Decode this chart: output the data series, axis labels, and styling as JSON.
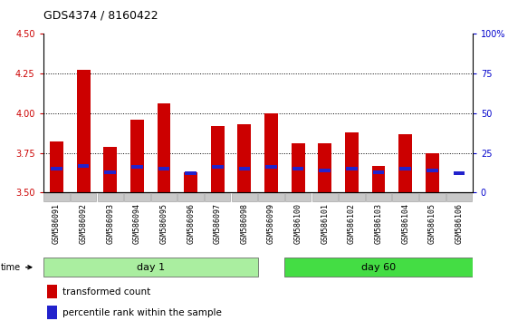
{
  "title": "GDS4374 / 8160422",
  "samples": [
    "GSM586091",
    "GSM586092",
    "GSM586093",
    "GSM586094",
    "GSM586095",
    "GSM586096",
    "GSM586097",
    "GSM586098",
    "GSM586099",
    "GSM586100",
    "GSM586101",
    "GSM586102",
    "GSM586103",
    "GSM586104",
    "GSM586105",
    "GSM586106"
  ],
  "red_values": [
    3.82,
    4.27,
    3.79,
    3.96,
    4.06,
    3.63,
    3.92,
    3.93,
    4.0,
    3.81,
    3.81,
    3.88,
    3.67,
    3.87,
    3.75,
    3.5
  ],
  "blue_values": [
    3.65,
    3.67,
    3.63,
    3.66,
    3.65,
    3.62,
    3.66,
    3.65,
    3.66,
    3.65,
    3.64,
    3.65,
    3.63,
    3.65,
    3.64,
    3.62
  ],
  "ylim": [
    3.5,
    4.5
  ],
  "yticks": [
    3.5,
    3.75,
    4.0,
    4.25,
    4.5
  ],
  "right_yticks": [
    0,
    25,
    50,
    75,
    100
  ],
  "right_ylim": [
    0,
    100
  ],
  "n_day1": 8,
  "n_day60": 8,
  "bar_width": 0.5,
  "red_color": "#cc0000",
  "blue_color": "#2222cc",
  "day1_color": "#aaeea0",
  "day60_color": "#44dd44",
  "grid_color": "#000000",
  "title_fontsize": 9,
  "axis_tick_fontsize": 7,
  "tick_color_left": "#cc0000",
  "tick_color_right": "#0000cc",
  "legend_fontsize": 7.5,
  "sample_label_fontsize": 6,
  "grey_box_color": "#c8c8c8",
  "dotted_lines": [
    3.75,
    4.0,
    4.25
  ]
}
